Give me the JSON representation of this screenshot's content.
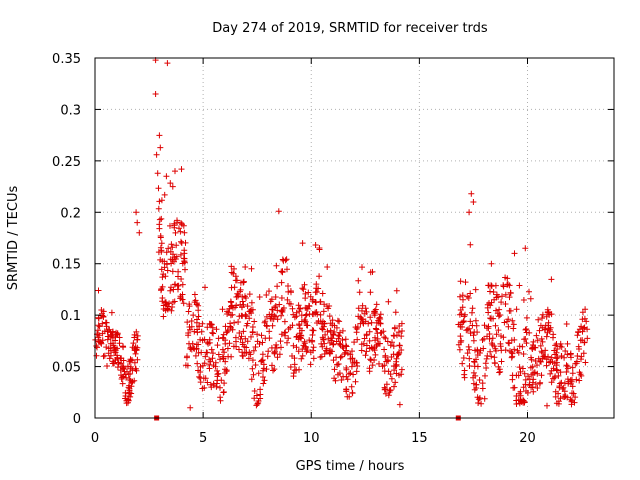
{
  "chart_data": {
    "type": "scatter",
    "title": "Day 274 of 2019, SRMTID for receiver trds",
    "xlabel": "GPS time / hours",
    "ylabel": "SRMTID / TECUs",
    "xlim": [
      0,
      24.0
    ],
    "ylim": [
      0,
      0.35
    ],
    "xticks": [
      0,
      5,
      10,
      15,
      20
    ],
    "xtick_labels": [
      "0",
      "5",
      "10",
      "15",
      "20"
    ],
    "yticks": [
      0,
      0.05,
      0.1,
      0.15,
      0.2,
      0.25,
      0.3,
      0.35
    ],
    "ytick_labels": [
      "0",
      "0.05",
      "0.1",
      "0.15",
      "0.2",
      "0.25",
      "0.3",
      "0.35"
    ],
    "grid": true,
    "marker": "+",
    "color": "#dd0000",
    "segments": [
      {
        "start": 0.0,
        "end": 2.0,
        "base": 0.062,
        "amp": 0.018,
        "noise": 0.045,
        "density": 80
      },
      {
        "start": 2.0,
        "end": 2.1,
        "base": 0.16,
        "amp": 0.02,
        "noise": 0.05,
        "density": 8
      },
      {
        "start": 2.9,
        "end": 4.2,
        "base": 0.165,
        "amp": 0.03,
        "noise": 0.085,
        "density": 85
      },
      {
        "start": 4.2,
        "end": 6.3,
        "base": 0.065,
        "amp": 0.02,
        "noise": 0.065,
        "density": 70
      },
      {
        "start": 6.3,
        "end": 9.2,
        "base": 0.082,
        "amp": 0.025,
        "noise": 0.08,
        "density": 70
      },
      {
        "start": 9.2,
        "end": 10.4,
        "base": 0.11,
        "amp": 0.03,
        "noise": 0.07,
        "density": 75
      },
      {
        "start": 10.4,
        "end": 14.2,
        "base": 0.068,
        "amp": 0.015,
        "noise": 0.06,
        "density": 70
      },
      {
        "start": 16.8,
        "end": 18.3,
        "base": 0.08,
        "amp": 0.03,
        "noise": 0.08,
        "density": 70
      },
      {
        "start": 18.3,
        "end": 20.0,
        "base": 0.07,
        "amp": 0.03,
        "noise": 0.08,
        "density": 70
      },
      {
        "start": 20.0,
        "end": 22.8,
        "base": 0.055,
        "amp": 0.015,
        "noise": 0.06,
        "density": 70
      }
    ],
    "highlights": [
      {
        "x": 2.8,
        "y": 0.348
      },
      {
        "x": 2.8,
        "y": 0.315
      },
      {
        "x": 3.35,
        "y": 0.345
      },
      {
        "x": 2.85,
        "y": 0.256
      },
      {
        "x": 3.3,
        "y": 0.235
      },
      {
        "x": 2.9,
        "y": 0.238
      },
      {
        "x": 3.7,
        "y": 0.24
      },
      {
        "x": 4.0,
        "y": 0.242
      },
      {
        "x": 3.6,
        "y": 0.225
      },
      {
        "x": 1.9,
        "y": 0.2
      },
      {
        "x": 1.95,
        "y": 0.19
      },
      {
        "x": 8.5,
        "y": 0.201
      },
      {
        "x": 17.4,
        "y": 0.218
      },
      {
        "x": 17.5,
        "y": 0.21
      },
      {
        "x": 17.3,
        "y": 0.2
      },
      {
        "x": 9.6,
        "y": 0.17
      },
      {
        "x": 19.9,
        "y": 0.165
      },
      {
        "x": 19.4,
        "y": 0.16
      },
      {
        "x": 4.4,
        "y": 0.01
      },
      {
        "x": 14.1,
        "y": 0.013
      },
      {
        "x": 20.9,
        "y": 0.012
      }
    ],
    "zero_markers": [
      2.85,
      16.8
    ]
  }
}
